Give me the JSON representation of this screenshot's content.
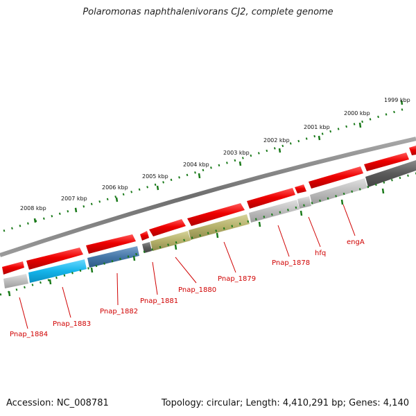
{
  "title": "Polaromonas naphthalenivorans CJ2, complete genome",
  "footer": {
    "accession": "Accession: NC_008781",
    "summary": "Topology: circular; Length: 4,410,291 bp; Genes: 4,140"
  },
  "colors": {
    "backbone": "#7a7a7a",
    "minor_tick": "#1a7a1a",
    "forward_gene": "#e00000",
    "label": "#d00000",
    "gray_feature": "#b8b8b8",
    "dark_feature": "#606060",
    "cyan_feature": "#19b8e8",
    "blue_feature": "#4477aa",
    "olive_feature": "#b7b36d"
  },
  "scale_labels": [
    "1999 kbp",
    "2000 kbp",
    "2001 kbp",
    "2002 kbp",
    "2003 kbp",
    "2004 kbp",
    "2005 kbp",
    "2006 kbp",
    "2007 kbp",
    "2008 kbp"
  ],
  "gene_labels": [
    "engA",
    "hfq",
    "Pnap_1878",
    "Pnap_1879",
    "Pnap_1880",
    "Pnap_1881",
    "Pnap_1882",
    "Pnap_1883",
    "Pnap_1884"
  ]
}
